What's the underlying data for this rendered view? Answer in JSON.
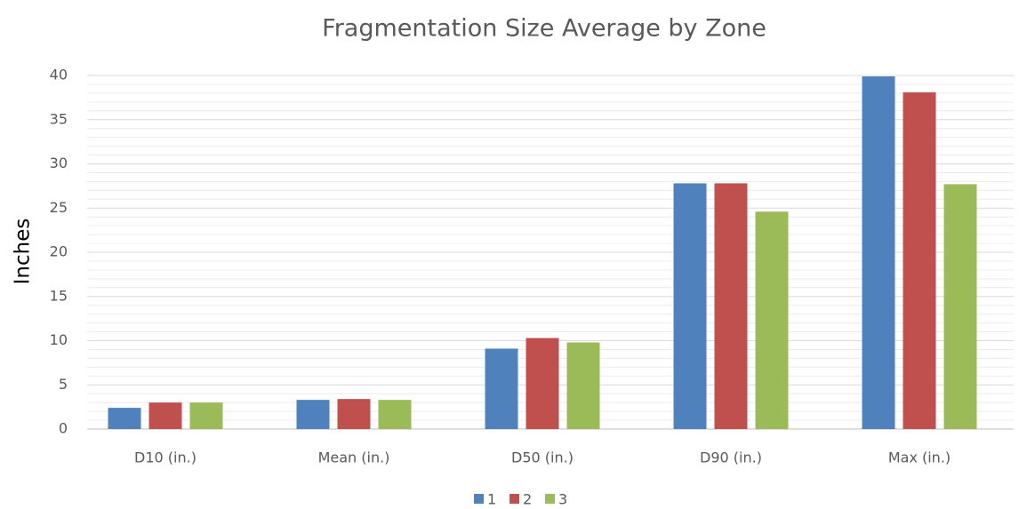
{
  "chart_data": {
    "type": "bar",
    "title": "Fragmentation Size Average by Zone",
    "y_label": "Inches",
    "categories": [
      "D10 (in.)",
      "Mean (in.)",
      "D50 (in.)",
      "D90 (in.)",
      "Max (in.)"
    ],
    "series": [
      {
        "name": "1",
        "color": "#4f81bd",
        "values": [
          2.4,
          3.3,
          9.1,
          27.8,
          39.9
        ]
      },
      {
        "name": "2",
        "color": "#c0504d",
        "values": [
          3.0,
          3.4,
          10.3,
          27.8,
          38.1
        ]
      },
      {
        "name": "3",
        "color": "#9bbb59",
        "values": [
          3.0,
          3.3,
          9.8,
          24.6,
          27.7
        ]
      }
    ],
    "ylim": [
      0,
      40
    ],
    "yticks": [
      0,
      5,
      10,
      15,
      20,
      25,
      30,
      35,
      40
    ],
    "grid": true,
    "minor_grid": true,
    "legend": "bottom"
  }
}
